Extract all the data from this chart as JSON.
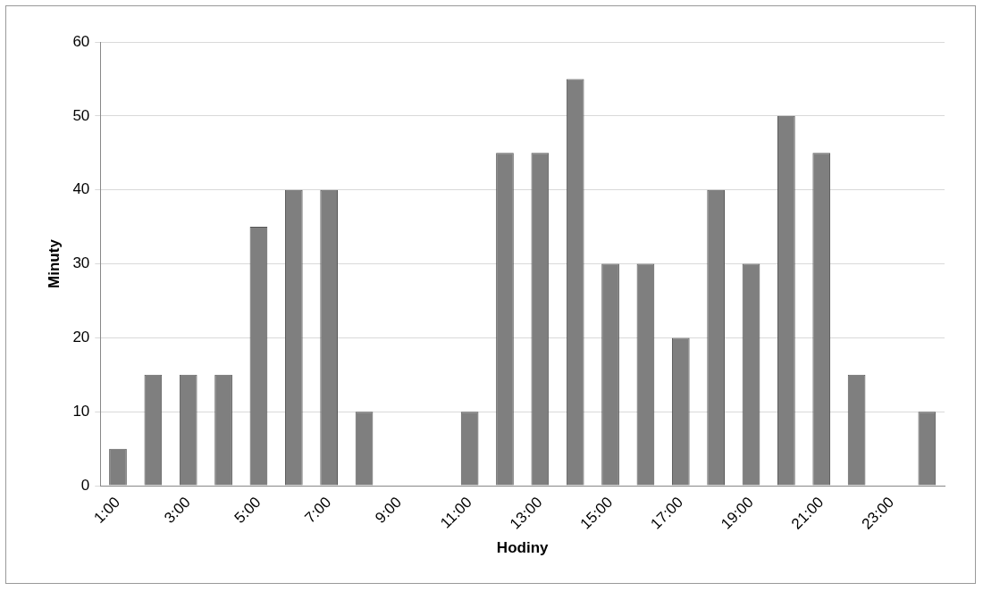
{
  "chart_data": {
    "type": "bar",
    "xlabel": "Hodiny",
    "ylabel": "Minuty",
    "categories": [
      "1:00",
      null,
      "3:00",
      null,
      "5:00",
      null,
      "7:00",
      null,
      "9:00",
      null,
      "11:00",
      null,
      "13:00",
      null,
      "15:00",
      null,
      "17:00",
      null,
      "19:00",
      null,
      "21:00",
      null,
      "23:00",
      null
    ],
    "values": [
      5,
      15,
      15,
      15,
      35,
      40,
      40,
      10,
      0,
      0,
      10,
      45,
      45,
      55,
      30,
      30,
      20,
      40,
      30,
      50,
      45,
      15,
      0,
      10
    ],
    "color": "#7f7f7f",
    "ylim": [
      0,
      60
    ],
    "yticks": [
      0,
      10,
      20,
      30,
      40,
      50,
      60
    ],
    "grid": "y",
    "legend": false
  }
}
